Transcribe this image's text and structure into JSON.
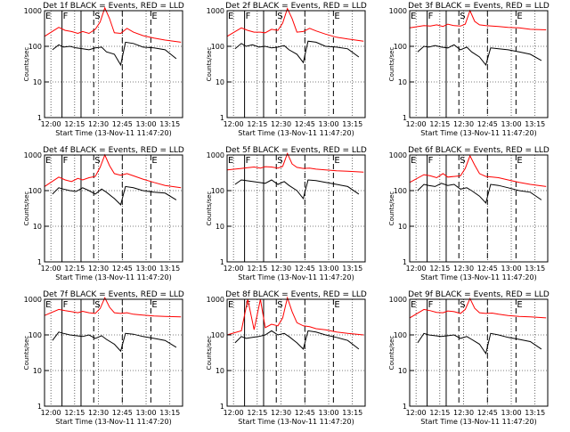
{
  "colors": {
    "events": "#000000",
    "lld": "#ff0000",
    "frame": "#000000",
    "grid": "#000000"
  },
  "chart_data": {
    "type": "line",
    "title_suffix": " BLACK = Events, RED = LLD",
    "ylabel": "Counts/sec",
    "xlabel": "Start Time (13-Nov-11 11:47:20)",
    "x_ticks": [
      "12:00",
      "12:15",
      "12:30",
      "12:45",
      "13:00",
      "13:15"
    ],
    "y_ticks": [
      "1",
      "10",
      "100",
      "1000"
    ],
    "y_scale": "log",
    "ylim": [
      1,
      1000
    ],
    "xlim": [
      "11:56",
      "13:23"
    ],
    "grid": "dotted",
    "event_markers": [
      {
        "label": "E",
        "time": "11:56",
        "style": "none"
      },
      {
        "label": "F",
        "time": "12:07",
        "style": "solid"
      },
      {
        "label": "S",
        "time": "12:27",
        "style": "dashed"
      },
      {
        "label": "",
        "time": "12:19",
        "style": "solid"
      },
      {
        "label": "",
        "time": "12:45",
        "style": "dashed"
      },
      {
        "label": "E",
        "time": "13:03",
        "style": "dashed"
      }
    ],
    "panels": [
      {
        "title": "Det 1f",
        "lld": {
          "t": [
            "11:56",
            "12:05",
            "12:09",
            "12:13",
            "12:17",
            "12:20",
            "12:24",
            "12:28",
            "12:31",
            "12:34",
            "12:37",
            "12:40",
            "12:44",
            "12:48",
            "12:52",
            "12:58",
            "13:05",
            "13:12",
            "13:22"
          ],
          "v": [
            190,
            340,
            280,
            260,
            230,
            260,
            230,
            300,
            480,
            1200,
            600,
            240,
            230,
            320,
            250,
            200,
            170,
            150,
            130
          ]
        },
        "events": {
          "t": [
            "12:01",
            "12:05",
            "12:08",
            "12:12",
            "12:16",
            "12:20",
            "12:24",
            "12:28",
            "12:32",
            "12:35",
            "12:40",
            "12:44",
            "12:47",
            "12:52",
            "12:58",
            "13:05",
            "13:12",
            "13:19"
          ],
          "v": [
            80,
            110,
            95,
            100,
            90,
            85,
            80,
            90,
            95,
            70,
            60,
            30,
            130,
            120,
            95,
            90,
            80,
            45
          ]
        }
      },
      {
        "title": "Det 2f",
        "lld": {
          "t": [
            "11:56",
            "12:05",
            "12:09",
            "12:13",
            "12:17",
            "12:20",
            "12:24",
            "12:28",
            "12:31",
            "12:34",
            "12:37",
            "12:40",
            "12:44",
            "12:48",
            "12:52",
            "12:58",
            "13:05",
            "13:12",
            "13:22"
          ],
          "v": [
            190,
            330,
            280,
            250,
            250,
            240,
            300,
            280,
            450,
            1150,
            600,
            250,
            260,
            320,
            270,
            220,
            180,
            160,
            140
          ]
        },
        "events": {
          "t": [
            "12:01",
            "12:05",
            "12:08",
            "12:12",
            "12:16",
            "12:20",
            "12:24",
            "12:28",
            "12:32",
            "12:35",
            "12:40",
            "12:44",
            "12:47",
            "12:52",
            "12:58",
            "13:05",
            "13:12",
            "13:19"
          ],
          "v": [
            85,
            120,
            100,
            110,
            95,
            100,
            90,
            95,
            105,
            80,
            60,
            35,
            140,
            130,
            100,
            95,
            85,
            50
          ]
        }
      },
      {
        "title": "Det 3f",
        "lld": {
          "t": [
            "11:56",
            "12:05",
            "12:09",
            "12:13",
            "12:17",
            "12:20",
            "12:24",
            "12:28",
            "12:31",
            "12:34",
            "12:37",
            "12:40",
            "12:44",
            "12:48",
            "12:52",
            "12:58",
            "13:05",
            "13:12",
            "13:22"
          ],
          "v": [
            330,
            380,
            370,
            400,
            360,
            420,
            380,
            370,
            420,
            1000,
            500,
            400,
            380,
            370,
            360,
            340,
            330,
            300,
            290
          ]
        },
        "events": {
          "t": [
            "12:01",
            "12:05",
            "12:08",
            "12:12",
            "12:16",
            "12:20",
            "12:24",
            "12:28",
            "12:32",
            "12:35",
            "12:40",
            "12:44",
            "12:47",
            "12:52",
            "12:58",
            "13:05",
            "13:12",
            "13:19"
          ],
          "v": [
            70,
            100,
            95,
            105,
            95,
            90,
            110,
            80,
            95,
            70,
            50,
            30,
            90,
            85,
            80,
            70,
            60,
            40
          ]
        }
      },
      {
        "title": "Det 4f",
        "lld": {
          "t": [
            "11:56",
            "12:05",
            "12:09",
            "12:13",
            "12:17",
            "12:20",
            "12:24",
            "12:28",
            "12:31",
            "12:34",
            "12:37",
            "12:40",
            "12:44",
            "12:48",
            "12:52",
            "12:58",
            "13:05",
            "13:12",
            "13:22"
          ],
          "v": [
            130,
            240,
            200,
            180,
            220,
            200,
            230,
            250,
            450,
            1000,
            500,
            300,
            270,
            300,
            260,
            210,
            170,
            140,
            120
          ]
        },
        "events": {
          "t": [
            "12:01",
            "12:05",
            "12:08",
            "12:12",
            "12:16",
            "12:20",
            "12:24",
            "12:28",
            "12:32",
            "12:35",
            "12:40",
            "12:44",
            "12:47",
            "12:52",
            "12:58",
            "13:05",
            "13:12",
            "13:19"
          ],
          "v": [
            80,
            120,
            110,
            100,
            95,
            120,
            100,
            80,
            110,
            90,
            60,
            40,
            130,
            120,
            100,
            90,
            85,
            55
          ]
        }
      },
      {
        "title": "Det 5f",
        "lld": {
          "t": [
            "11:56",
            "12:05",
            "12:09",
            "12:13",
            "12:17",
            "12:20",
            "12:24",
            "12:28",
            "12:31",
            "12:34",
            "12:37",
            "12:40",
            "12:44",
            "12:48",
            "12:52",
            "12:58",
            "13:05",
            "13:12",
            "13:22"
          ],
          "v": [
            380,
            420,
            440,
            460,
            430,
            470,
            460,
            430,
            480,
            1100,
            560,
            450,
            420,
            430,
            400,
            380,
            360,
            350,
            330
          ]
        },
        "events": {
          "t": [
            "12:01",
            "12:05",
            "12:08",
            "12:12",
            "12:16",
            "12:20",
            "12:24",
            "12:28",
            "12:32",
            "12:35",
            "12:40",
            "12:44",
            "12:47",
            "12:52",
            "12:58",
            "13:05",
            "13:12",
            "13:19"
          ],
          "v": [
            150,
            200,
            190,
            180,
            170,
            160,
            200,
            150,
            180,
            140,
            100,
            60,
            200,
            190,
            170,
            150,
            130,
            80
          ]
        }
      },
      {
        "title": "Det 6f",
        "lld": {
          "t": [
            "11:56",
            "12:05",
            "12:09",
            "12:13",
            "12:17",
            "12:20",
            "12:24",
            "12:28",
            "12:31",
            "12:34",
            "12:37",
            "12:40",
            "12:44",
            "12:48",
            "12:52",
            "12:58",
            "13:05",
            "13:12",
            "13:22"
          ],
          "v": [
            170,
            280,
            260,
            230,
            300,
            240,
            250,
            260,
            420,
            950,
            520,
            300,
            250,
            240,
            230,
            200,
            170,
            150,
            130
          ]
        },
        "events": {
          "t": [
            "12:01",
            "12:05",
            "12:08",
            "12:12",
            "12:16",
            "12:20",
            "12:24",
            "12:28",
            "12:32",
            "12:35",
            "12:40",
            "12:44",
            "12:47",
            "12:52",
            "12:58",
            "13:05",
            "13:12",
            "13:19"
          ],
          "v": [
            100,
            150,
            140,
            130,
            160,
            140,
            150,
            110,
            120,
            100,
            70,
            45,
            150,
            140,
            120,
            100,
            90,
            55
          ]
        }
      },
      {
        "title": "Det 7f",
        "lld": {
          "t": [
            "11:56",
            "12:05",
            "12:09",
            "12:13",
            "12:17",
            "12:20",
            "12:24",
            "12:28",
            "12:31",
            "12:34",
            "12:37",
            "12:40",
            "12:44",
            "12:48",
            "12:52",
            "12:58",
            "13:05",
            "13:12",
            "13:22"
          ],
          "v": [
            350,
            520,
            480,
            450,
            420,
            460,
            420,
            400,
            550,
            1100,
            600,
            420,
            400,
            420,
            380,
            360,
            340,
            330,
            320
          ]
        },
        "events": {
          "t": [
            "12:01",
            "12:05",
            "12:08",
            "12:12",
            "12:16",
            "12:20",
            "12:24",
            "12:28",
            "12:32",
            "12:35",
            "12:40",
            "12:44",
            "12:47",
            "12:52",
            "12:58",
            "13:05",
            "13:12",
            "13:19"
          ],
          "v": [
            70,
            120,
            110,
            100,
            95,
            90,
            100,
            80,
            95,
            75,
            55,
            35,
            110,
            105,
            90,
            80,
            70,
            45
          ]
        }
      },
      {
        "title": "Det 8f",
        "lld": {
          "t": [
            "11:56",
            "12:05",
            "12:09",
            "12:13",
            "12:17",
            "12:20",
            "12:24",
            "12:28",
            "12:31",
            "12:34",
            "12:37",
            "12:40",
            "12:44",
            "12:48",
            "12:52",
            "12:58",
            "13:05",
            "13:12",
            "13:22"
          ],
          "v": [
            100,
            130,
            1000,
            140,
            1000,
            160,
            200,
            180,
            300,
            1100,
            450,
            220,
            180,
            170,
            150,
            140,
            120,
            110,
            100
          ]
        },
        "events": {
          "t": [
            "12:01",
            "12:05",
            "12:08",
            "12:12",
            "12:16",
            "12:20",
            "12:24",
            "12:28",
            "12:32",
            "12:35",
            "12:40",
            "12:44",
            "12:47",
            "12:52",
            "12:58",
            "13:05",
            "13:12",
            "13:19"
          ],
          "v": [
            60,
            90,
            80,
            85,
            90,
            100,
            130,
            100,
            110,
            90,
            60,
            40,
            130,
            120,
            100,
            85,
            70,
            40
          ]
        }
      },
      {
        "title": "Det 9f",
        "lld": {
          "t": [
            "11:56",
            "12:05",
            "12:09",
            "12:13",
            "12:17",
            "12:20",
            "12:24",
            "12:28",
            "12:31",
            "12:34",
            "12:37",
            "12:40",
            "12:44",
            "12:48",
            "12:52",
            "12:58",
            "13:05",
            "13:12",
            "13:22"
          ],
          "v": [
            300,
            520,
            480,
            430,
            420,
            470,
            450,
            400,
            520,
            1050,
            560,
            420,
            400,
            410,
            380,
            350,
            330,
            320,
            300
          ]
        },
        "events": {
          "t": [
            "12:01",
            "12:05",
            "12:08",
            "12:12",
            "12:16",
            "12:20",
            "12:24",
            "12:28",
            "12:32",
            "12:35",
            "12:40",
            "12:44",
            "12:47",
            "12:52",
            "12:58",
            "13:05",
            "13:12",
            "13:19"
          ],
          "v": [
            60,
            110,
            100,
            95,
            90,
            95,
            100,
            80,
            90,
            75,
            55,
            30,
            110,
            100,
            85,
            75,
            65,
            40
          ]
        }
      }
    ]
  }
}
